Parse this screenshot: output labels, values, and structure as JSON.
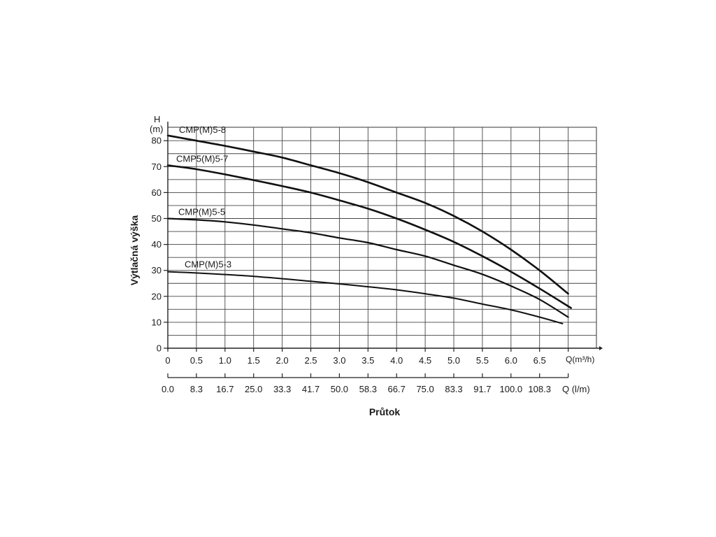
{
  "chart_data": {
    "type": "line",
    "ylabel": "Výtlačná výška",
    "xlabel": "Průtok",
    "y_axis_unit_top": "H",
    "y_axis_unit_bottom": "(m)",
    "x_axis_unit_primary": "Q(m³/h)",
    "x_axis_unit_secondary": "Q (l/m)",
    "ylim": [
      0,
      85
    ],
    "xlim": [
      0,
      7.5
    ],
    "y_ticks": [
      "0",
      "10",
      "20",
      "30",
      "40",
      "50",
      "60",
      "70",
      "80"
    ],
    "x_ticks_m3h": [
      "0",
      "0.5",
      "1.0",
      "1.5",
      "2.0",
      "2.5",
      "3.0",
      "3.5",
      "4.0",
      "4.5",
      "5.0",
      "5.5",
      "6.0",
      "6.5"
    ],
    "x_ticks_lmin": [
      "0.0",
      "8.3",
      "16.7",
      "25.0",
      "33.3",
      "41.7",
      "50.0",
      "58.3",
      "66.7",
      "75.0",
      "83.3",
      "91.7",
      "100.0",
      "108.3"
    ],
    "grid": true,
    "series": [
      {
        "name": "CMP(M)5-8",
        "x": [
          0,
          0.5,
          1.0,
          1.5,
          2.0,
          2.5,
          3.0,
          3.5,
          4.0,
          4.5,
          5.0,
          5.5,
          6.0,
          6.5,
          7.0
        ],
        "y": [
          82,
          80,
          78,
          75.8,
          73.5,
          70.5,
          67.5,
          64,
          60,
          56,
          51,
          45,
          38,
          30,
          21
        ]
      },
      {
        "name": "CMP5(M)5-7",
        "x": [
          0,
          0.5,
          1.0,
          1.5,
          2.0,
          2.5,
          3.0,
          3.5,
          4.0,
          4.5,
          5.0,
          5.5,
          6.0,
          6.5,
          7.05
        ],
        "y": [
          70.5,
          69,
          67,
          64.8,
          62.5,
          60,
          57,
          53.8,
          50,
          45.7,
          41,
          35.5,
          29.5,
          23,
          15.5
        ]
      },
      {
        "name": "CMP(M)5-5",
        "x": [
          0,
          0.5,
          1.0,
          1.5,
          2.0,
          2.5,
          3.0,
          3.5,
          4.0,
          4.5,
          5.0,
          5.5,
          6.0,
          6.5,
          7.0
        ],
        "y": [
          50,
          49.5,
          48.7,
          47.5,
          46,
          44.5,
          42.5,
          40.7,
          38,
          35.5,
          32,
          28.5,
          24,
          18.8,
          12
        ]
      },
      {
        "name": "CMP(M)5-3",
        "x": [
          0,
          0.5,
          1.0,
          1.5,
          2.0,
          2.5,
          3.0,
          3.5,
          4.0,
          4.5,
          5.0,
          5.5,
          6.0,
          6.5,
          6.9
        ],
        "y": [
          29.5,
          29,
          28.4,
          27.7,
          26.8,
          25.8,
          24.8,
          23.7,
          22.5,
          21,
          19.3,
          17,
          14.8,
          12,
          9.5
        ]
      }
    ]
  }
}
